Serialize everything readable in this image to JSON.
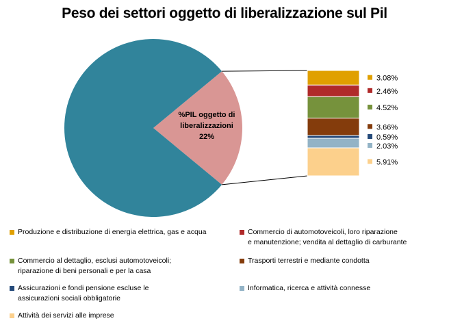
{
  "title": "Peso dei settori oggetto di liberalizzazione sul Pil",
  "chart_data": {
    "type": "pie",
    "title": "Peso dei settori oggetto di liberalizzazione sul Pil",
    "pie": {
      "slices": [
        {
          "label": "",
          "value": 78,
          "color": "#31849b"
        },
        {
          "label": "%PIL oggetto di liberalizzazioni",
          "value": 22,
          "value_label": "22%",
          "color": "#d99694"
        }
      ]
    },
    "breakdown": {
      "type": "stacked-bar",
      "series": [
        {
          "name": "Produzione e distribuzione di energia elettrica, gas e acqua",
          "value": 3.08,
          "value_label": "3.08%",
          "color": "#e0a000"
        },
        {
          "name": "Commercio di automotoveicoli, loro riparazione e manutenzione; vendita al dettaglio di carburante",
          "value": 2.46,
          "value_label": "2.46%",
          "color": "#b02a2a"
        },
        {
          "name": "Commercio al dettaglio, esclusi automotoveicoli; riparazione di beni personali e per la casa",
          "value": 4.52,
          "value_label": "4.52%",
          "color": "#76923c"
        },
        {
          "name": "Trasporti terrestri e mediante condotta",
          "value": 3.66,
          "value_label": "3.66%",
          "color": "#843c0c"
        },
        {
          "name": "Assicurazioni e fondi pensione escluse le assicurazioni sociali obbligatorie",
          "value": 0.59,
          "value_label": "0.59%",
          "color": "#244a7a"
        },
        {
          "name": "Informatica, ricerca e attività connesse",
          "value": 2.03,
          "value_label": "2.03%",
          "color": "#93b3c6"
        },
        {
          "name": "Attività dei servizi alle imprese",
          "value": 5.91,
          "value_label": "5.91%",
          "color": "#fcd08c"
        }
      ]
    }
  },
  "legend": [
    {
      "line1": "Produzione e distribuzione di energia elettrica, gas e acqua",
      "line2": ""
    },
    {
      "line1": "Commercio di automotoveicoli, loro riparazione",
      "line2": "e manutenzione; vendita al dettaglio di carburante"
    },
    {
      "line1": "Commercio al dettaglio, esclusi automotoveicoli;",
      "line2": "riparazione di beni personali e per la casa"
    },
    {
      "line1": "Trasporti terrestri e mediante condotta",
      "line2": ""
    },
    {
      "line1": "Assicurazioni e fondi pensione escluse le",
      "line2": "assicurazioni sociali obbligatorie"
    },
    {
      "line1": "Informatica, ricerca e attività connesse",
      "line2": ""
    },
    {
      "line1": "Attività dei servizi alle imprese",
      "line2": ""
    }
  ]
}
